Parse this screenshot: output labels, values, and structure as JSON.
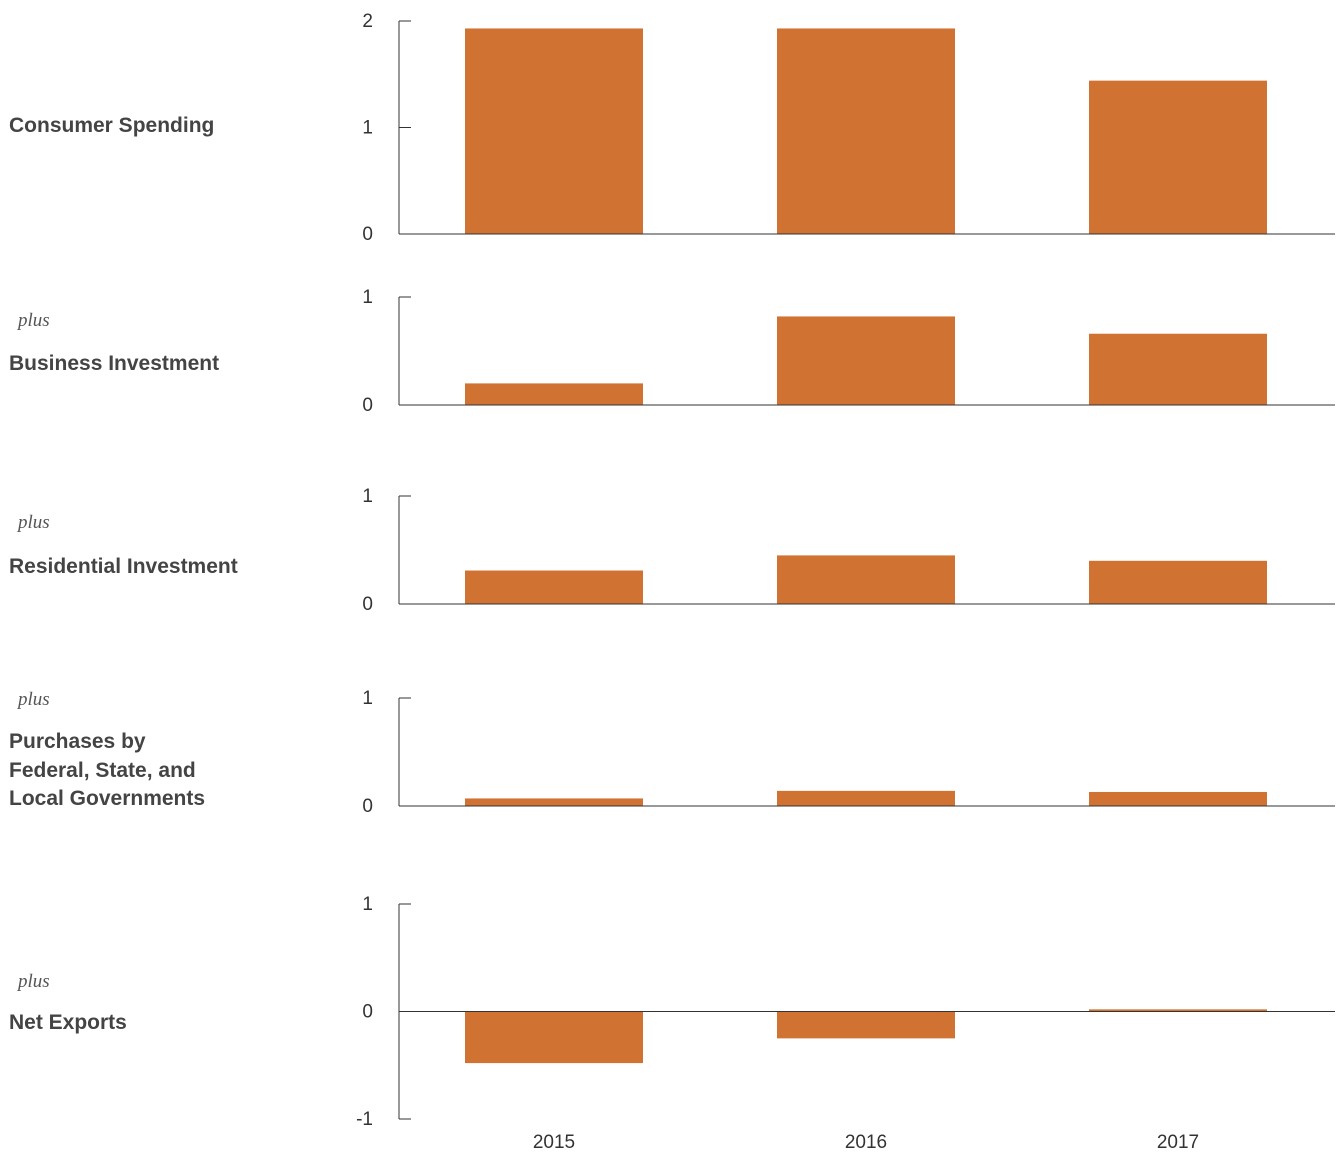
{
  "chart_data": [
    {
      "type": "bar",
      "title": "Consumer Spending",
      "prefix": "",
      "categories": [
        "2015",
        "2016",
        "2017"
      ],
      "values": [
        1.93,
        1.93,
        1.44
      ],
      "ylim": [
        0,
        2
      ],
      "yticks": [
        "2",
        "1",
        "0"
      ],
      "color": "#D07332"
    },
    {
      "type": "bar",
      "title": "Business Investment",
      "prefix": "plus",
      "categories": [
        "2015",
        "2016",
        "2017"
      ],
      "values": [
        0.2,
        0.82,
        0.66
      ],
      "ylim": [
        0,
        1
      ],
      "yticks": [
        "1",
        "0"
      ],
      "color": "#D07332"
    },
    {
      "type": "bar",
      "title": "Residential Investment",
      "prefix": "plus",
      "categories": [
        "2015",
        "2016",
        "2017"
      ],
      "values": [
        0.31,
        0.45,
        0.4
      ],
      "ylim": [
        0,
        1
      ],
      "yticks": [
        "1",
        "0"
      ],
      "color": "#D07332"
    },
    {
      "type": "bar",
      "title": "Purchases by\nFederal, State, and\nLocal Governments",
      "prefix": "plus",
      "categories": [
        "2015",
        "2016",
        "2017"
      ],
      "values": [
        0.07,
        0.14,
        0.13
      ],
      "ylim": [
        0,
        1
      ],
      "yticks": [
        "1",
        "0"
      ],
      "color": "#D07332"
    },
    {
      "type": "bar",
      "title": "Net Exports",
      "prefix": "plus",
      "categories": [
        "2015",
        "2016",
        "2017"
      ],
      "values": [
        -0.48,
        -0.25,
        0.02
      ],
      "ylim": [
        -1,
        1
      ],
      "yticks": [
        "1",
        "0",
        "-1"
      ],
      "color": "#D07332"
    }
  ]
}
